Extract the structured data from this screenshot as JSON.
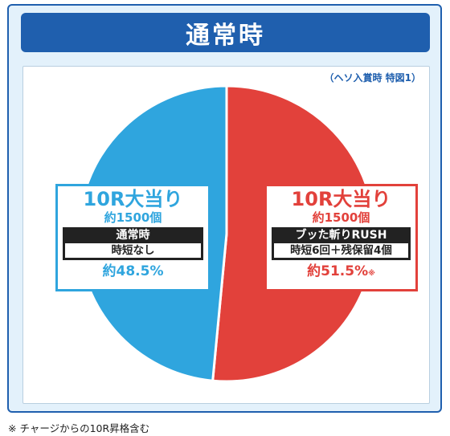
{
  "header": {
    "title": "通常時"
  },
  "note_top": "（ヘソ入賞時 特図1）",
  "footnote": "※ チャージからの10R昇格含む",
  "colors": {
    "normal": "#2fa5de",
    "rush": "#e2413b",
    "header": "#1f5fae"
  },
  "labels": {
    "normal": {
      "heading": "10R大当り",
      "payout": "約1500個",
      "mode": "通常時",
      "mode_detail": "時短なし",
      "percent": "約48.5%"
    },
    "rush": {
      "heading": "10R大当り",
      "payout": "約1500個",
      "mode": "ブッた斬りRUSH",
      "mode_detail": "時短6回＋残保留4個",
      "percent": "約51.5%",
      "percent_mark": "※"
    }
  },
  "chart_data": {
    "type": "pie",
    "title": "通常時",
    "subtitle": "（ヘソ入賞時 特図1）",
    "slices": [
      {
        "label": "ブッた斬りRUSH",
        "value": 51.5
      },
      {
        "label": "通常時",
        "value": 48.5
      }
    ]
  }
}
